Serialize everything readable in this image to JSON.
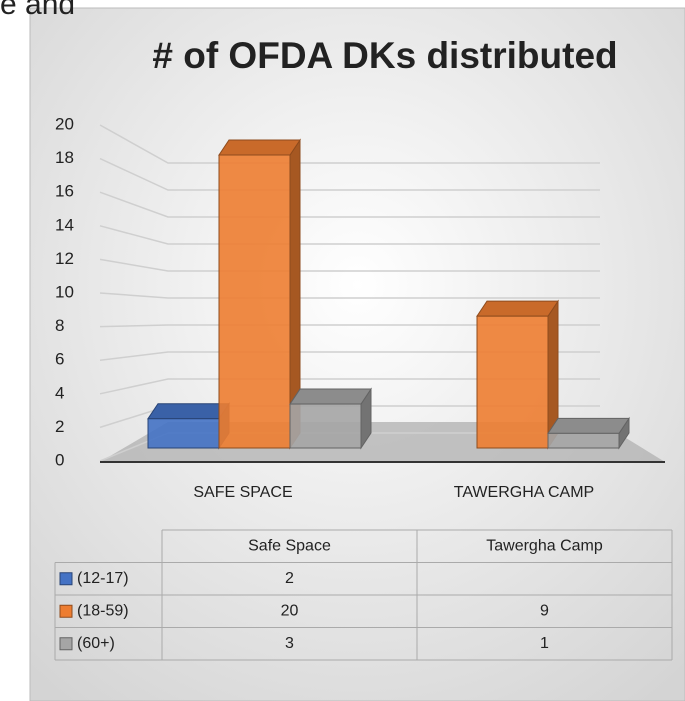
{
  "fragment_text": "e and",
  "chart_data": {
    "type": "bar3d",
    "title": "# of OFDA DKs distributed",
    "categories": [
      "SAFE SPACE",
      "TAWERGHA CAMP"
    ],
    "table_categories": [
      "Safe Space",
      "Tawergha Camp"
    ],
    "series": [
      {
        "name": "(12-17)",
        "color": "#4472c4",
        "values": [
          2,
          null
        ]
      },
      {
        "name": "(18-59)",
        "color": "#ed7d31",
        "values": [
          20,
          9
        ]
      },
      {
        "name": "(60+)",
        "color": "#a5a5a5",
        "values": [
          3,
          1
        ]
      }
    ],
    "ylim": [
      0,
      20
    ],
    "yticks": [
      0,
      2,
      4,
      6,
      8,
      10,
      12,
      14,
      16,
      18,
      20
    ],
    "grid": true
  }
}
